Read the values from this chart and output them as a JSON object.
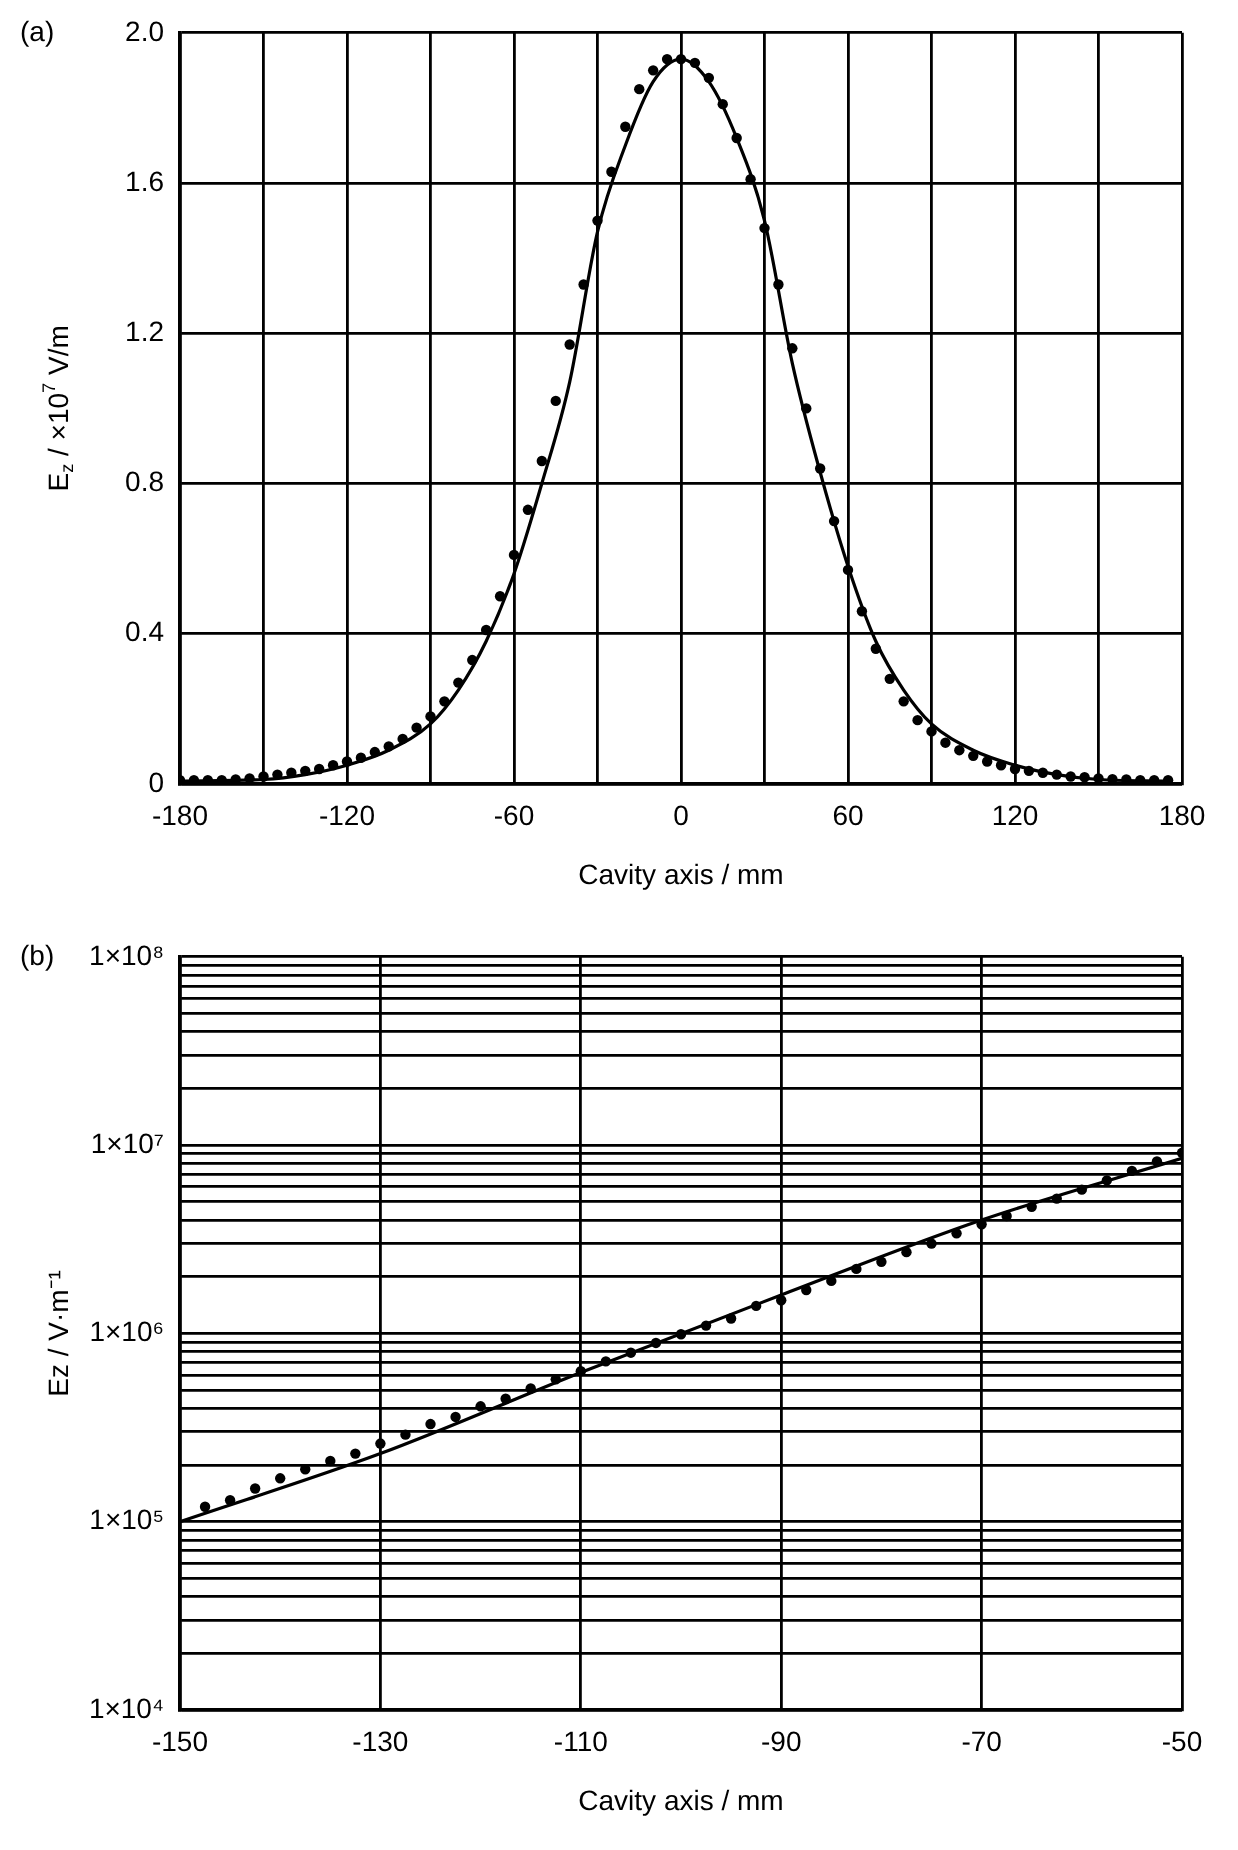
{
  "chart_data": [
    {
      "type": "line",
      "xlabel": "Cavity axis / mm",
      "ylabel": "E$_{z}$ / ×10$^{7}$ V/m",
      "annotations": [
        "(a)"
      ],
      "xlim": [
        -180,
        180
      ],
      "xticks": [
        -180,
        {
          "value": -150,
          "label": null
        },
        -120,
        {
          "value": -90,
          "label": null
        },
        -60,
        {
          "value": -30,
          "label": null
        },
        0,
        {
          "value": 30,
          "label": null
        },
        60,
        {
          "value": 90,
          "label": null
        },
        120,
        {
          "value": 150,
          "label": null
        },
        180
      ],
      "ylim": [
        0,
        2.0
      ],
      "yticks": [
        0,
        0.4,
        0.8,
        1.2,
        1.6,
        {
          "value": 2.0,
          "label": "2.0"
        }
      ],
      "grid": true,
      "series": [
        {
          "color": "#000000",
          "marker": "none",
          "line_style": "solid",
          "x": [
            -180,
            -150,
            -135,
            -120,
            -105,
            -90,
            -80,
            -70,
            -60,
            -50,
            -40,
            -30,
            -20,
            -10,
            0,
            10,
            20,
            30,
            40,
            50,
            60,
            70,
            80,
            90,
            105,
            120,
            135,
            150,
            175
          ],
          "values": [
            0.008,
            0.012,
            0.025,
            0.05,
            0.09,
            0.16,
            0.25,
            0.38,
            0.56,
            0.8,
            1.07,
            1.47,
            1.7,
            1.87,
            1.93,
            1.87,
            1.72,
            1.5,
            1.12,
            0.83,
            0.58,
            0.38,
            0.25,
            0.16,
            0.09,
            0.05,
            0.025,
            0.012,
            0.008
          ]
        },
        {
          "type": "scatter",
          "color": "#000000",
          "marker": "circle",
          "x": [
            -180,
            -175,
            -170,
            -165,
            -160,
            -155,
            -150,
            -145,
            -140,
            -135,
            -130,
            -125,
            -120,
            -115,
            -110,
            -105,
            -100,
            -95,
            -90,
            -85,
            -80,
            -75,
            -70,
            -65,
            -60,
            -55,
            -50,
            -45,
            -40,
            -35,
            -30,
            -25,
            -20,
            -15,
            -10,
            -5,
            0,
            5,
            10,
            15,
            20,
            25,
            30,
            35,
            40,
            45,
            50,
            55,
            60,
            65,
            70,
            75,
            80,
            85,
            90,
            95,
            100,
            105,
            110,
            115,
            120,
            125,
            130,
            135,
            140,
            145,
            150,
            155,
            160,
            165,
            170,
            175
          ],
          "values": [
            0.01,
            0.01,
            0.01,
            0.01,
            0.012,
            0.015,
            0.02,
            0.025,
            0.03,
            0.035,
            0.04,
            0.05,
            0.06,
            0.07,
            0.085,
            0.1,
            0.12,
            0.15,
            0.18,
            0.22,
            0.27,
            0.33,
            0.41,
            0.5,
            0.61,
            0.73,
            0.86,
            1.02,
            1.17,
            1.33,
            1.5,
            1.63,
            1.75,
            1.85,
            1.9,
            1.93,
            1.93,
            1.92,
            1.88,
            1.81,
            1.72,
            1.61,
            1.48,
            1.33,
            1.16,
            1.0,
            0.84,
            0.7,
            0.57,
            0.46,
            0.36,
            0.28,
            0.22,
            0.17,
            0.14,
            0.11,
            0.09,
            0.075,
            0.06,
            0.05,
            0.04,
            0.035,
            0.03,
            0.025,
            0.02,
            0.018,
            0.015,
            0.013,
            0.012,
            0.01,
            0.01,
            0.01
          ]
        }
      ]
    },
    {
      "type": "line",
      "xlabel": "Cavity axis / mm",
      "ylabel": "Ez / V·m⁻¹",
      "annotations": [
        "(b)"
      ],
      "log": "y",
      "xlim": [
        -150,
        -50
      ],
      "xticks": [
        -150,
        -130,
        -110,
        -90,
        -70,
        -50
      ],
      "ylim": [
        10000,
        100000000
      ],
      "yticks": [
        {
          "value": 10000,
          "label": "1×10⁴"
        },
        {
          "value": 20000,
          "label": null
        },
        {
          "value": 30000,
          "label": null
        },
        {
          "value": 40000,
          "label": null
        },
        {
          "value": 50000,
          "label": null
        },
        {
          "value": 60000,
          "label": null
        },
        {
          "value": 70000,
          "label": null
        },
        {
          "value": 80000,
          "label": null
        },
        {
          "value": 90000,
          "label": null
        },
        {
          "value": 100000,
          "label": "1×10⁵"
        },
        {
          "value": 200000,
          "label": null
        },
        {
          "value": 300000,
          "label": null
        },
        {
          "value": 400000,
          "label": null
        },
        {
          "value": 500000,
          "label": null
        },
        {
          "value": 600000,
          "label": null
        },
        {
          "value": 700000,
          "label": null
        },
        {
          "value": 800000,
          "label": null
        },
        {
          "value": 900000,
          "label": null
        },
        {
          "value": 1000000,
          "label": "1×10⁶"
        },
        {
          "value": 2000000,
          "label": null
        },
        {
          "value": 3000000,
          "label": null
        },
        {
          "value": 4000000,
          "label": null
        },
        {
          "value": 5000000,
          "label": null
        },
        {
          "value": 6000000,
          "label": null
        },
        {
          "value": 7000000,
          "label": null
        },
        {
          "value": 8000000,
          "label": null
        },
        {
          "value": 9000000,
          "label": null
        },
        {
          "value": 10000000,
          "label": "1×10⁷"
        },
        {
          "value": 20000000,
          "label": null
        },
        {
          "value": 30000000,
          "label": null
        },
        {
          "value": 40000000,
          "label": null
        },
        {
          "value": 50000000,
          "label": null
        },
        {
          "value": 60000000,
          "label": null
        },
        {
          "value": 70000000,
          "label": null
        },
        {
          "value": 80000000,
          "label": null
        },
        {
          "value": 90000000,
          "label": null
        },
        {
          "value": 100000000,
          "label": "1×10⁸"
        }
      ],
      "grid": true,
      "series": [
        {
          "color": "#000000",
          "marker": "none",
          "line_style": "solid",
          "x": [
            -150,
            -130,
            -110,
            -90,
            -70,
            -50
          ],
          "values": [
            100000,
            230000,
            620000,
            1600000,
            4000000,
            8500000
          ]
        },
        {
          "type": "scatter",
          "color": "#000000",
          "marker": "circle",
          "x": [
            -147.5,
            -145,
            -142.5,
            -140,
            -137.5,
            -135,
            -132.5,
            -130,
            -127.5,
            -125,
            -122.5,
            -120,
            -117.5,
            -115,
            -112.5,
            -110,
            -107.5,
            -105,
            -102.5,
            -100,
            -97.5,
            -95,
            -92.5,
            -90,
            -87.5,
            -85,
            -82.5,
            -80,
            -77.5,
            -75,
            -72.5,
            -70,
            -67.5,
            -65,
            -62.5,
            -60,
            -57.5,
            -55,
            -52.5,
            -50
          ],
          "values": [
            120000,
            130000,
            150000,
            170000,
            190000,
            210000,
            230000,
            260000,
            290000,
            330000,
            360000,
            410000,
            450000,
            510000,
            570000,
            630000,
            710000,
            790000,
            890000,
            990000,
            1100000,
            1200000,
            1400000,
            1500000,
            1700000,
            1900000,
            2200000,
            2400000,
            2700000,
            3000000,
            3400000,
            3800000,
            4200000,
            4700000,
            5200000,
            5800000,
            6500000,
            7300000,
            8200000,
            9100000
          ]
        }
      ]
    }
  ]
}
